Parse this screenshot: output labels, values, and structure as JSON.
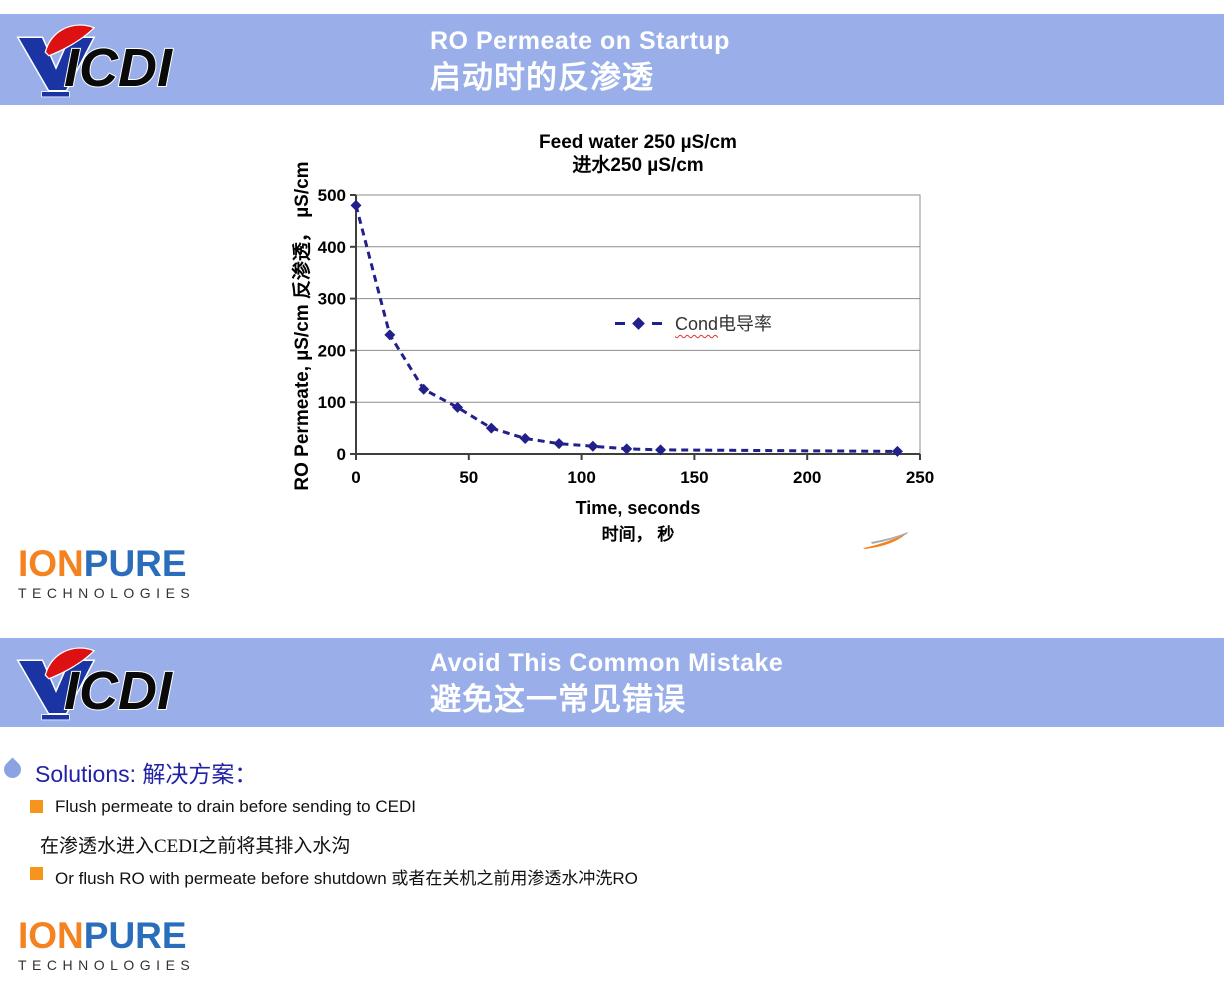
{
  "slide1": {
    "header": {
      "title_en": "RO Permeate on Startup",
      "title_zh": "启动时的反渗透"
    },
    "brand_text": "ICDI"
  },
  "chart_data": {
    "type": "line",
    "title_line1": "Feed water 250 µS/cm",
    "title_line2": "进水250 µS/cm",
    "xlabel_line1": "Time, seconds",
    "xlabel_line2": "时间， 秒",
    "ylabel": "RO Permeate, µS/cm   反渗透，  µS/cm",
    "x": [
      0,
      15,
      30,
      45,
      60,
      75,
      90,
      105,
      120,
      135,
      240
    ],
    "y": [
      480,
      230,
      125,
      90,
      50,
      30,
      20,
      15,
      10,
      8,
      5
    ],
    "xlim": [
      0,
      250
    ],
    "ylim": [
      0,
      500
    ],
    "x_ticks": [
      0,
      50,
      100,
      150,
      200,
      250
    ],
    "y_ticks": [
      0,
      100,
      200,
      300,
      400,
      500
    ],
    "grid": true,
    "line_style": "dashed",
    "marker": "diamond",
    "series_color": "#22218C",
    "legend_en": "Cond",
    "legend_zh": "电导率",
    "legend_position": "inside-center"
  },
  "ionpure": {
    "ion": "ION",
    "pure": "PURE",
    "sub": "TECHNOLOGIES"
  },
  "slide2": {
    "header": {
      "title_en": "Avoid This Common Mistake",
      "title_zh": "避免这一常见错误"
    },
    "brand_text": "ICDI",
    "solutions_label": "Solutions: 解决方案：",
    "bullet1": "Flush permeate to drain before sending to CEDI",
    "bullet1_zh": "在渗透水进入CEDI之前将其排入水沟",
    "bullet2": "Or flush RO with permeate before shutdown 或者在关机之前用渗透水冲洗RO"
  },
  "colors": {
    "band": "#9AAFE9",
    "series": "#22218C",
    "bullet_orange": "#F7941D",
    "solutions_navy": "#2222A6",
    "ion_orange": "#F58220",
    "pure_blue": "#2A6EBB"
  }
}
